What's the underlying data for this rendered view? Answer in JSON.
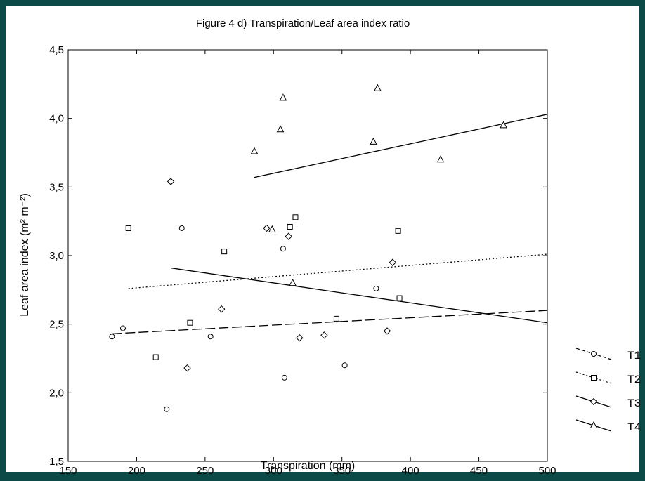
{
  "chart_data": {
    "type": "scatter",
    "title": "Figure 4 d) Transpiration/Leaf area index ratio",
    "xlabel": "Transpiration (mm)",
    "ylabel": "Leaf area index (m² m⁻²)",
    "xlim": [
      150,
      500
    ],
    "ylim": [
      1.5,
      4.5
    ],
    "xticks": [
      "150",
      "200",
      "250",
      "300",
      "350",
      "400",
      "450",
      "500"
    ],
    "yticks": [
      "1,5",
      "2,0",
      "2,5",
      "3,0",
      "3,5",
      "4,0",
      "4,5"
    ],
    "legend_position": "right",
    "series": [
      {
        "name": "T1",
        "marker": "circle",
        "line": "dashed",
        "points": [
          [
            182,
            2.41
          ],
          [
            190,
            2.47
          ],
          [
            222,
            1.88
          ],
          [
            233,
            3.2
          ],
          [
            254,
            2.41
          ],
          [
            307,
            3.05
          ],
          [
            308,
            2.11
          ],
          [
            352,
            2.2
          ],
          [
            375,
            2.76
          ]
        ],
        "fit": [
          [
            182,
            2.43
          ],
          [
            500,
            2.6
          ]
        ]
      },
      {
        "name": "T2",
        "marker": "square",
        "line": "dotted",
        "points": [
          [
            194,
            3.2
          ],
          [
            214,
            2.26
          ],
          [
            239,
            2.51
          ],
          [
            264,
            3.03
          ],
          [
            312,
            3.21
          ],
          [
            316,
            3.28
          ],
          [
            346,
            2.54
          ],
          [
            391,
            3.18
          ],
          [
            392,
            2.69
          ]
        ],
        "fit": [
          [
            194,
            2.76
          ],
          [
            500,
            3.01
          ]
        ]
      },
      {
        "name": "T3",
        "marker": "diamond",
        "line": "solid",
        "points": [
          [
            225,
            3.54
          ],
          [
            237,
            2.18
          ],
          [
            262,
            2.61
          ],
          [
            295,
            3.2
          ],
          [
            311,
            3.14
          ],
          [
            319,
            2.4
          ],
          [
            337,
            2.42
          ],
          [
            383,
            2.45
          ],
          [
            387,
            2.95
          ]
        ],
        "fit": [
          [
            225,
            2.91
          ],
          [
            500,
            2.51
          ]
        ]
      },
      {
        "name": "T4",
        "marker": "triangle",
        "line": "solid",
        "points": [
          [
            286,
            3.76
          ],
          [
            299,
            3.19
          ],
          [
            305,
            3.92
          ],
          [
            307,
            4.15
          ],
          [
            314,
            2.8
          ],
          [
            373,
            3.83
          ],
          [
            376,
            4.22
          ],
          [
            422,
            3.7
          ],
          [
            468,
            3.95
          ]
        ],
        "fit": [
          [
            286,
            3.57
          ],
          [
            500,
            4.03
          ]
        ]
      }
    ]
  }
}
